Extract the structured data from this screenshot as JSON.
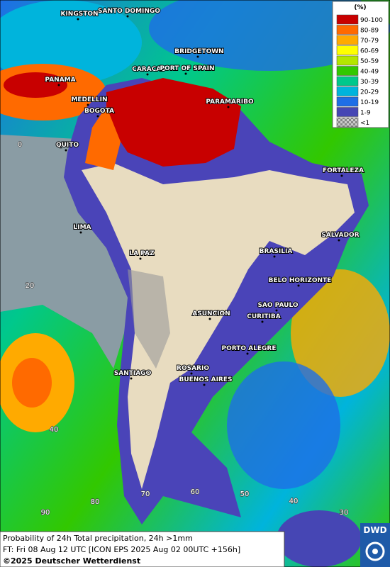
{
  "legend": {
    "title": "(%)",
    "items": [
      {
        "label": "90-100",
        "color": "#c80000"
      },
      {
        "label": "80-89",
        "color": "#ff6a00"
      },
      {
        "label": "70-79",
        "color": "#ffaa00"
      },
      {
        "label": "60-69",
        "color": "#ffff00"
      },
      {
        "label": "50-59",
        "color": "#b4e600"
      },
      {
        "label": "40-49",
        "color": "#32c800"
      },
      {
        "label": "30-39",
        "color": "#00c88c"
      },
      {
        "label": "20-29",
        "color": "#00b4dc"
      },
      {
        "label": "10-19",
        "color": "#1e6ee6"
      },
      {
        "label": "1-9",
        "color": "#4646b4"
      },
      {
        "label": "<1",
        "color": "#a0a0a0"
      }
    ]
  },
  "cities": [
    "KINGSTON",
    "SANTO DOMINGO",
    "BRIDGETOWN",
    "CARACAS",
    "PORT OF SPAIN",
    "PANAMA",
    "MEDELLIN",
    "BOGOTA",
    "PARAMARIBO",
    "QUITO",
    "FORTALEZA",
    "LIMA",
    "SALVADOR",
    "BRASILIA",
    "LA PAZ",
    "BELO HORIZONTE",
    "SAO PAULO",
    "ASUNCION",
    "CURITIBA",
    "PORTO ALEGRE",
    "SANTIAGO",
    "ROSARIO",
    "BUENOS AIRES"
  ],
  "grid_labels": [
    "0",
    "20",
    "40",
    "90",
    "80",
    "70",
    "60",
    "50",
    "40",
    "30"
  ],
  "caption": [
    "Probability of 24h Total precipitation, 24h >1mm",
    "FT: Fri 08 Aug 12 UTC [ICON EPS 2025 Aug 02 00UTC +156h]",
    "©2025 Deutscher Wetterdienst"
  ],
  "logo": "DWD"
}
